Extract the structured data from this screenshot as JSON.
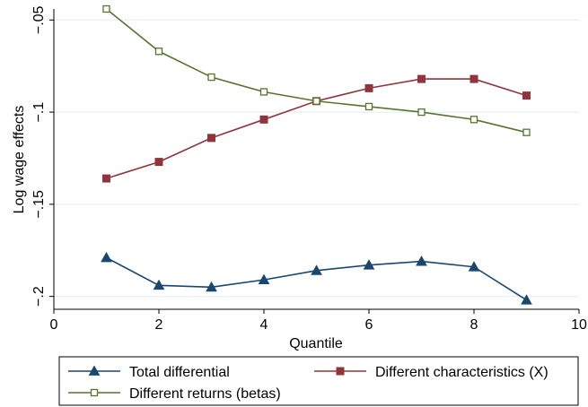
{
  "chart_data": {
    "type": "line",
    "title": "",
    "xlabel": "Quantile",
    "ylabel": "Log wage effects",
    "xlim": [
      0,
      10
    ],
    "ylim": [
      -0.207,
      -0.044
    ],
    "x_ticks": [
      0,
      2,
      4,
      6,
      8,
      10
    ],
    "x_tick_labels": [
      "0",
      "2",
      "4",
      "6",
      "8",
      "10"
    ],
    "y_ticks": [
      -0.05,
      -0.1,
      -0.15,
      -0.2
    ],
    "y_tick_labels": [
      "-.05",
      "-.1",
      "-.15",
      "-.2"
    ],
    "grid": "horizontal",
    "legend_position": "bottom",
    "x": [
      1,
      2,
      3,
      4,
      5,
      6,
      7,
      8,
      9
    ],
    "series": [
      {
        "name": "Total differential",
        "color": "#1a476f",
        "marker": "filled-triangle",
        "values": [
          -0.179,
          -0.194,
          -0.195,
          -0.191,
          -0.186,
          -0.183,
          -0.181,
          -0.184,
          -0.202
        ]
      },
      {
        "name": "Different characteristics (X)",
        "color": "#90353b",
        "marker": "filled-square",
        "values": [
          -0.136,
          -0.127,
          -0.114,
          -0.104,
          -0.094,
          -0.087,
          -0.082,
          -0.082,
          -0.091
        ]
      },
      {
        "name": "Different returns (betas)",
        "color": "#55752f",
        "marker": "hollow-square",
        "values": [
          -0.044,
          -0.067,
          -0.081,
          -0.089,
          -0.094,
          -0.097,
          -0.1,
          -0.104,
          -0.111
        ]
      }
    ],
    "legend_layout": [
      {
        "series": 0,
        "col": 0,
        "row": 0
      },
      {
        "series": 1,
        "col": 1,
        "row": 0
      },
      {
        "series": 2,
        "col": 0,
        "row": 1
      }
    ]
  }
}
